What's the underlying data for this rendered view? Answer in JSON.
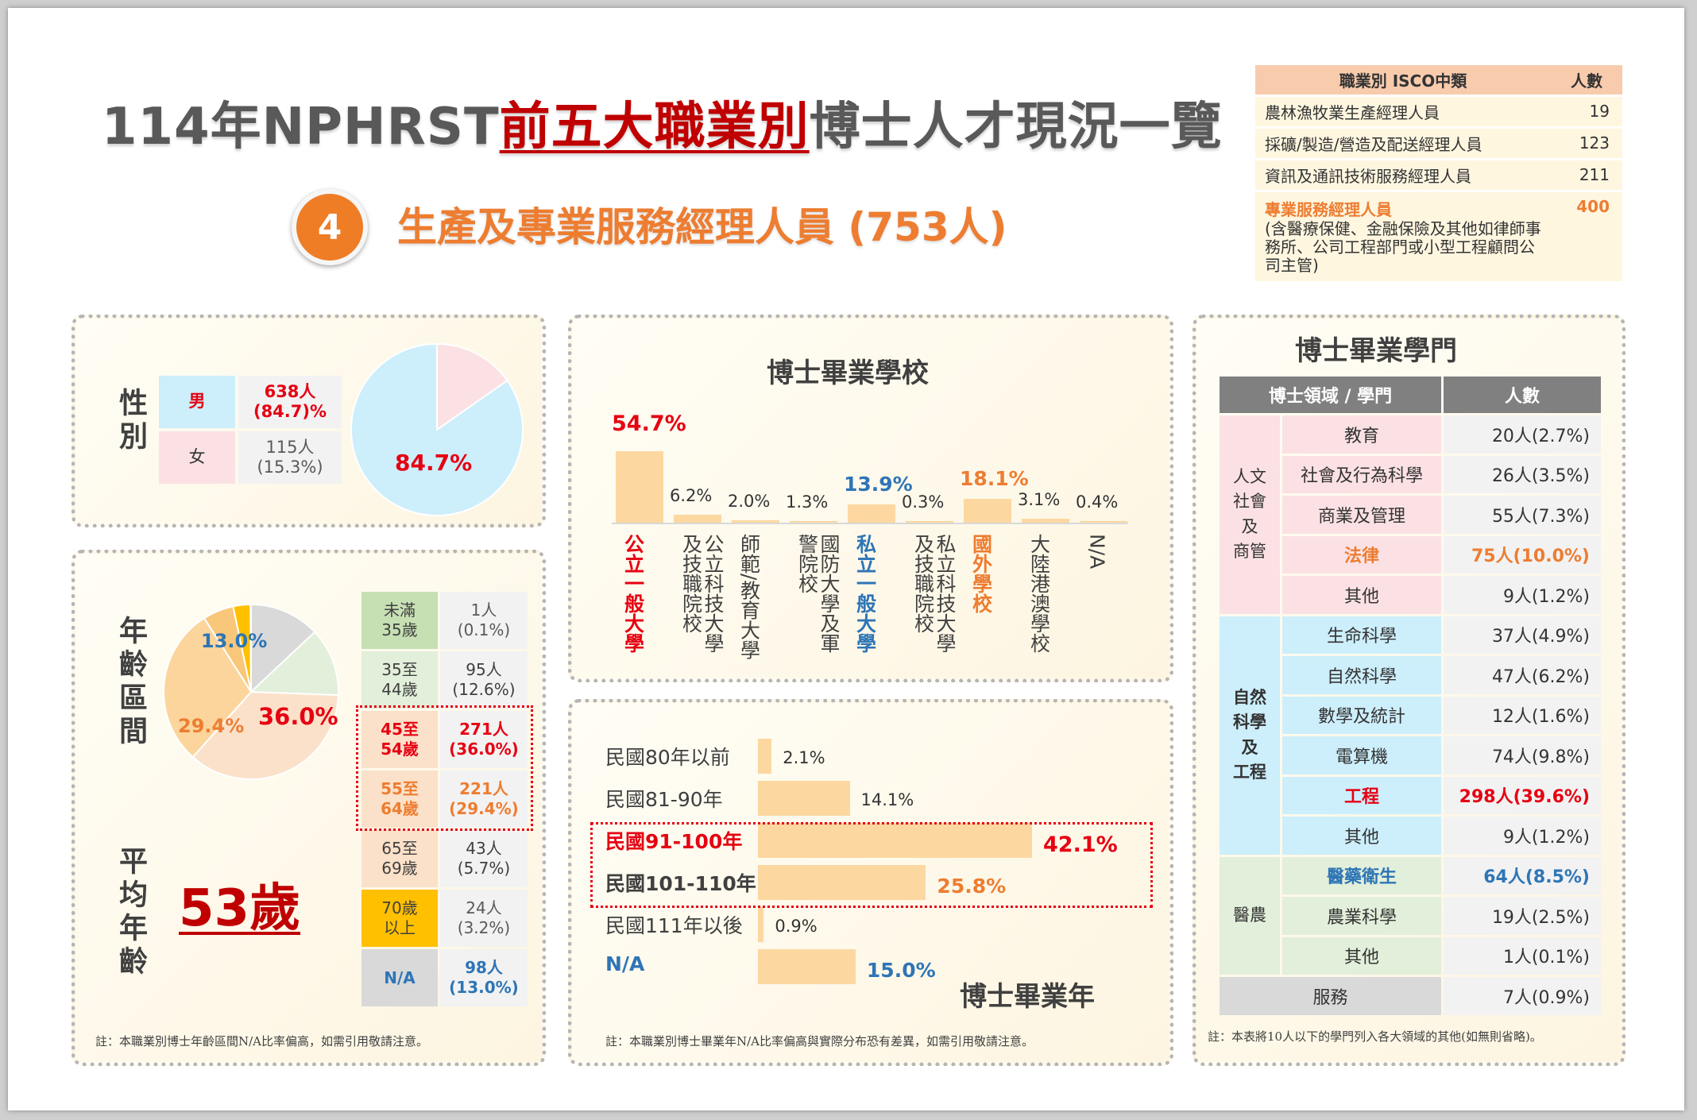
{
  "header": {
    "title_pre": "114年NPHRST",
    "title_red": "前五大職業別",
    "title_post": "博士人才現況一覽",
    "badge": "4",
    "subtitle": "生產及專業服務經理人員 (753人)"
  },
  "isco_table": {
    "col_occupation": "職業別 ISCO中類",
    "col_count": "人數",
    "rows": [
      {
        "name": "農林漁牧業生產經理人員",
        "count": "19"
      },
      {
        "name": "採礦/製造/營造及配送經理人員",
        "count": "123"
      },
      {
        "name": "資訊及通訊技術服務經理人員",
        "count": "211"
      }
    ],
    "highlight": {
      "name": "專業服務經理人員",
      "desc": "(含醫療保健、金融保險及其他如律師事務所、公司工程部門或小型工程顧問公司主管)",
      "count": "400"
    }
  },
  "gender": {
    "label": "性別",
    "male_label": "男",
    "male_value": "638人\n(84.7)%",
    "female_label": "女",
    "female_value": "115人\n(15.3%)",
    "pie_label": "84.7%"
  },
  "age": {
    "label": "年齡區間",
    "pie_label_na": "13.0%",
    "pie_label_55": "29.4%",
    "pie_label_45": "36.0%",
    "avg_label": "平均年齡",
    "avg_value": "53歲",
    "rows": [
      {
        "range": "未滿\n35歲",
        "value": "1人\n(0.1%)"
      },
      {
        "range": "35至\n44歲",
        "value": "95人\n(12.6%)"
      },
      {
        "range": "45至\n54歲",
        "value": "271人\n(36.0%)"
      },
      {
        "range": "55至\n64歲",
        "value": "221人\n(29.4%)"
      },
      {
        "range": "65至\n69歲",
        "value": "43人\n(5.7%)"
      },
      {
        "range": "70歲\n以上",
        "value": "24人\n(3.2%)"
      },
      {
        "range": "N/A",
        "value": "98人\n(13.0%)"
      }
    ],
    "note": "註：本職業別博士年齡區間N/A比率偏高，如需引用敬請注意。"
  },
  "school": {
    "title": "博士畢業學校",
    "items": [
      {
        "label": "公立一般大學",
        "pct": "54.7%"
      },
      {
        "label": "公立科技大學及技職院校",
        "pct": "6.2%"
      },
      {
        "label": "師範/教育大學",
        "pct": "2.0%"
      },
      {
        "label": "國防大學及軍警院校",
        "pct": "1.3%"
      },
      {
        "label": "私立一般大學",
        "pct": "13.9%"
      },
      {
        "label": "私立科技大學及技職院校",
        "pct": "0.3%"
      },
      {
        "label": "國外學校",
        "pct": "18.1%"
      },
      {
        "label": "大陸港澳學校",
        "pct": "3.1%"
      },
      {
        "label": "N/A",
        "pct": "0.4%"
      }
    ]
  },
  "grad_year": {
    "title": "博士畢業年",
    "items": [
      {
        "label": "民國80年以前",
        "pct": "2.1%"
      },
      {
        "label": "民國81-90年",
        "pct": "14.1%"
      },
      {
        "label": "民國91-100年",
        "pct": "42.1%"
      },
      {
        "label": "民國101-110年",
        "pct": "25.8%"
      },
      {
        "label": "民國111年以後",
        "pct": "0.9%"
      },
      {
        "label": "N/A",
        "pct": "15.0%"
      }
    ],
    "note": "註：本職業別博士畢業年N/A比率偏高與實際分布恐有差異，如需引用敬請注意。"
  },
  "discipline": {
    "title": "博士畢業學門",
    "col_field": "博士領域 / 學門",
    "col_count": "人數",
    "groups": [
      {
        "name": "人文\n社會\n及\n商管",
        "rows": [
          {
            "name": "教育",
            "value": "20人(2.7%)"
          },
          {
            "name": "社會及行為科學",
            "value": "26人(3.5%)"
          },
          {
            "name": "商業及管理",
            "value": "55人(7.3%)"
          },
          {
            "name": "法律",
            "value": "75人(10.0%)"
          },
          {
            "name": "其他",
            "value": "9人(1.2%)"
          }
        ]
      },
      {
        "name": "自然\n科學\n及\n工程",
        "rows": [
          {
            "name": "生命科學",
            "value": "37人(4.9%)"
          },
          {
            "name": "自然科學",
            "value": "47人(6.2%)"
          },
          {
            "name": "數學及統計",
            "value": "12人(1.6%)"
          },
          {
            "name": "電算機",
            "value": "74人(9.8%)"
          },
          {
            "name": "工程",
            "value": "298人(39.6%)"
          },
          {
            "name": "其他",
            "value": "9人(1.2%)"
          }
        ]
      },
      {
        "name": "醫農",
        "rows": [
          {
            "name": "醫藥衛生",
            "value": "64人(8.5%)"
          },
          {
            "name": "農業科學",
            "value": "19人(2.5%)"
          },
          {
            "name": "其他",
            "value": "1人(0.1%)"
          }
        ]
      }
    ],
    "service": {
      "name": "服務",
      "value": "7人(0.9%)"
    },
    "note": "註：本表將10人以下的學門列入各大領域的其他(如無則省略)。"
  },
  "colors": {
    "accent_orange": "#ed7d31",
    "red": "#e60012",
    "blue": "#2e75b6",
    "bar": "#fcd8a0",
    "male": "#cdeefb",
    "female": "#fbe1e4"
  },
  "chart_data": [
    {
      "type": "pie",
      "categories": [
        "男",
        "女"
      ],
      "values": [
        84.7,
        15.3
      ]
    },
    {
      "type": "pie",
      "categories": [
        "未滿35歲",
        "35至44歲",
        "45至54歲",
        "55至64歲",
        "65至69歲",
        "70歲以上",
        "N/A"
      ],
      "values": [
        0.1,
        12.6,
        36.0,
        29.4,
        5.7,
        3.2,
        13.0
      ]
    },
    {
      "type": "bar",
      "title": "博士畢業學校",
      "categories": [
        "公立一般大學",
        "公立科技大學及技職院校",
        "師範/教育大學",
        "國防大學及軍警院校",
        "私立一般大學",
        "私立科技大學及技職院校",
        "國外學校",
        "大陸港澳學校",
        "N/A"
      ],
      "values": [
        54.7,
        6.2,
        2.0,
        1.3,
        13.9,
        0.3,
        18.1,
        3.1,
        0.4
      ]
    },
    {
      "type": "bar",
      "title": "博士畢業年",
      "categories": [
        "民國80年以前",
        "民國81-90年",
        "民國91-100年",
        "民國101-110年",
        "民國111年以後",
        "N/A"
      ],
      "values": [
        2.1,
        14.1,
        42.1,
        25.8,
        0.9,
        15.0
      ]
    }
  ]
}
